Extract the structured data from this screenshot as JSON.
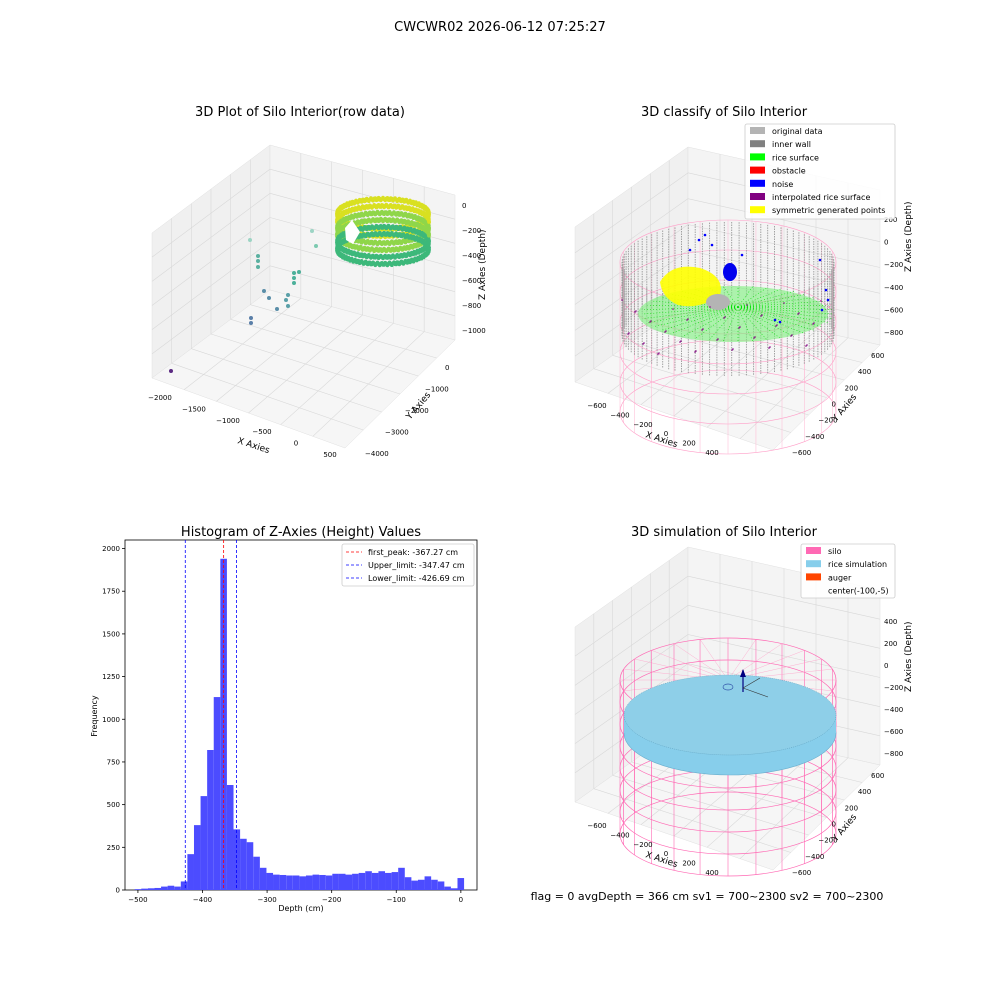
{
  "figure": {
    "suptitle": "CWCWR02 2026-06-12 07:25:27",
    "footer": "flag = 0     avgDepth = 366 cm  sv1 = 700~2300  sv2 = 700~2300"
  },
  "panels": {
    "raw": {
      "title": "3D Plot of Silo Interior(row data)",
      "xlabel": "X Axies",
      "ylabel": "Y Axies",
      "zlabel": "Z Axies (Depth)",
      "xticks": [
        "−2000",
        "−1500",
        "−1000",
        "−500",
        "0",
        "500"
      ],
      "yticks": [
        "−4000",
        "−3000",
        "−2000",
        "−1000",
        "0"
      ],
      "zticks": [
        "0",
        "−200",
        "−400",
        "−600",
        "−800",
        "−1000"
      ]
    },
    "classify": {
      "title": "3D classify of Silo Interior",
      "xlabel": "X Axies",
      "ylabel": "Y Axies",
      "zlabel": "Z Axies (Depth)",
      "xticks": [
        "−600",
        "−400",
        "−200",
        "0",
        "200",
        "400"
      ],
      "yticks": [
        "−600",
        "−400",
        "−200",
        "0",
        "200",
        "400",
        "600"
      ],
      "zticks": [
        "200",
        "0",
        "−200",
        "−400",
        "−600",
        "−800"
      ],
      "legend": [
        {
          "label": "original data",
          "color": "#b4b4b4"
        },
        {
          "label": "inner wall",
          "color": "#808080"
        },
        {
          "label": "rice surface",
          "color": "#00ff00"
        },
        {
          "label": "obstacle",
          "color": "#ff0000"
        },
        {
          "label": "noise",
          "color": "#0000ff"
        },
        {
          "label": "interpolated rice surface",
          "color": "#800080"
        },
        {
          "label": "symmetric generated points",
          "color": "#ffff00"
        }
      ]
    },
    "simulation": {
      "title": "3D simulation of Silo Interior",
      "xlabel": "X Axies",
      "ylabel": "Y Axies",
      "zlabel": "Z Axies (Depth)",
      "xticks": [
        "−600",
        "−400",
        "−200",
        "0",
        "200",
        "400"
      ],
      "yticks": [
        "−600",
        "−400",
        "−200",
        "0",
        "200",
        "400",
        "600"
      ],
      "zticks": [
        "400",
        "200",
        "0",
        "−200",
        "−400",
        "−600",
        "−800"
      ],
      "legend": [
        {
          "label": "silo",
          "color": "#ff69b4"
        },
        {
          "label": "rice simulation",
          "color": "#87ceeb"
        },
        {
          "label": "auger",
          "color": "#ff4500"
        },
        {
          "label": "center(-100,-5)",
          "color": ""
        }
      ]
    }
  },
  "chart_data": {
    "type": "bar",
    "title": "Histogram of Z-Axies (Height) Values",
    "xlabel": "Depth (cm)",
    "ylabel": "Frequency",
    "xlim": [
      -520,
      25
    ],
    "ylim": [
      0,
      2050
    ],
    "xticks": [
      -500,
      -400,
      -300,
      -200,
      -100,
      0
    ],
    "xtick_labels": [
      "−500",
      "−400",
      "−300",
      "−200",
      "−100",
      "0"
    ],
    "yticks": [
      0,
      250,
      500,
      750,
      1000,
      1250,
      1500,
      1750,
      2000
    ],
    "yticks_labels": [
      "0",
      "250",
      "500",
      "750",
      "1000",
      "1250",
      "1500",
      "1750",
      "2000"
    ],
    "bin_start": -505,
    "bin_width": 10.2,
    "values": [
      5,
      8,
      10,
      12,
      20,
      25,
      20,
      50,
      210,
      380,
      550,
      820,
      1130,
      1940,
      615,
      355,
      300,
      280,
      195,
      130,
      100,
      90,
      88,
      85,
      85,
      80,
      85,
      90,
      88,
      85,
      95,
      95,
      90,
      95,
      100,
      110,
      100,
      110,
      100,
      105,
      130,
      75,
      55,
      60,
      80,
      60,
      50,
      20,
      10,
      70
    ],
    "color": "#4c4cff",
    "lines": [
      {
        "x": -367.27,
        "color": "#ff0000",
        "label": "first_peak: -367.27 cm"
      },
      {
        "x": -347.47,
        "color": "#0000ff",
        "label": "Upper_limit: -347.47 cm"
      },
      {
        "x": -426.69,
        "color": "#0000ff",
        "label": "Lower_limit: -426.69 cm"
      }
    ],
    "legend_position": "top-right"
  }
}
